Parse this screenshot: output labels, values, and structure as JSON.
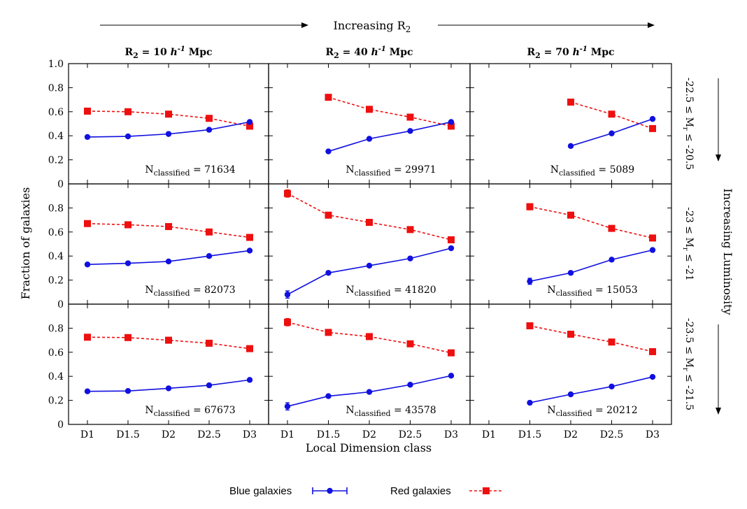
{
  "chart_data": {
    "type": "line",
    "title": "",
    "ylabel": "Fraction of galaxies",
    "xlabel": "Local Dimension class",
    "categories": [
      "D1",
      "D1.5",
      "D2",
      "D2.5",
      "D3"
    ],
    "ylim": [
      0,
      1.0
    ],
    "yticks_top": [
      "0",
      "0.2",
      "0.4",
      "0.6",
      "0.8",
      "1.0"
    ],
    "yticks": [
      "0",
      "0.2",
      "0.4",
      "0.6",
      "0.8"
    ],
    "top_arrow_label": "Increasing R",
    "top_arrow_sub": "2",
    "right_arrow_label": "Increasing Luminosity",
    "columns": [
      {
        "label": "R",
        "sub": "2",
        "value": " = 10 ",
        "h": "h",
        "exp": "-1",
        "unit": " Mpc"
      },
      {
        "label": "R",
        "sub": "2",
        "value": " = 40 ",
        "h": "h",
        "exp": "-1",
        "unit": " Mpc"
      },
      {
        "label": "R",
        "sub": "2",
        "value": " = 70 ",
        "h": "h",
        "exp": "-1",
        "unit": " Mpc"
      }
    ],
    "rows": [
      {
        "pre": "-22.5 ≤ M",
        "sub": "r",
        "post": " ≤ -20.5"
      },
      {
        "pre": "-23 ≤ M",
        "sub": "r",
        "post": " ≤ -21"
      },
      {
        "pre": "-23.5 ≤ M",
        "sub": "r",
        "post": " ≤ -21.5"
      }
    ],
    "n_label": "N",
    "n_sub": "classified",
    "panels": [
      {
        "row": 0,
        "col": 0,
        "n": "71634",
        "blue": [
          0.39,
          0.395,
          0.415,
          0.45,
          0.515
        ],
        "red": [
          0.605,
          0.6,
          0.58,
          0.545,
          0.48
        ],
        "blue_err": [
          0,
          0,
          0,
          0,
          0
        ],
        "red_err": [
          0,
          0,
          0,
          0,
          0
        ]
      },
      {
        "row": 0,
        "col": 1,
        "n": "29971",
        "blue": [
          null,
          0.27,
          0.375,
          0.44,
          0.515
        ],
        "red": [
          null,
          0.72,
          0.62,
          0.555,
          0.48
        ],
        "blue_err": [
          0,
          0,
          0,
          0,
          0
        ],
        "red_err": [
          0,
          0,
          0,
          0,
          0
        ]
      },
      {
        "row": 0,
        "col": 2,
        "n": "5089",
        "blue": [
          null,
          null,
          0.315,
          0.42,
          0.54
        ],
        "red": [
          null,
          null,
          0.68,
          0.58,
          0.46
        ],
        "blue_err": [
          0,
          0,
          0,
          0,
          0
        ],
        "red_err": [
          0,
          0,
          0,
          0,
          0
        ]
      },
      {
        "row": 1,
        "col": 0,
        "n": "82073",
        "blue": [
          0.33,
          0.34,
          0.355,
          0.4,
          0.445
        ],
        "red": [
          0.67,
          0.66,
          0.645,
          0.6,
          0.555
        ],
        "blue_err": [
          0,
          0,
          0,
          0,
          0
        ],
        "red_err": [
          0,
          0,
          0,
          0,
          0
        ]
      },
      {
        "row": 1,
        "col": 1,
        "n": "41820",
        "blue": [
          0.08,
          0.26,
          0.32,
          0.38,
          0.465
        ],
        "red": [
          0.92,
          0.74,
          0.68,
          0.62,
          0.535
        ],
        "blue_err": [
          0.03,
          0,
          0,
          0,
          0
        ],
        "red_err": [
          0.03,
          0,
          0,
          0,
          0
        ]
      },
      {
        "row": 1,
        "col": 2,
        "n": "15053",
        "blue": [
          null,
          0.19,
          0.26,
          0.37,
          0.45
        ],
        "red": [
          null,
          0.81,
          0.74,
          0.63,
          0.55
        ],
        "blue_err": [
          0,
          0.025,
          0,
          0,
          0
        ],
        "red_err": [
          0,
          0.025,
          0,
          0,
          0
        ]
      },
      {
        "row": 2,
        "col": 0,
        "n": "67673",
        "blue": [
          0.275,
          0.278,
          0.3,
          0.325,
          0.37
        ],
        "red": [
          0.725,
          0.722,
          0.7,
          0.675,
          0.63
        ],
        "blue_err": [
          0,
          0,
          0,
          0,
          0
        ],
        "red_err": [
          0,
          0,
          0,
          0,
          0
        ]
      },
      {
        "row": 2,
        "col": 1,
        "n": "43578",
        "blue": [
          0.15,
          0.235,
          0.27,
          0.33,
          0.405
        ],
        "red": [
          0.85,
          0.765,
          0.73,
          0.67,
          0.595
        ],
        "blue_err": [
          0.03,
          0,
          0,
          0,
          0
        ],
        "red_err": [
          0.03,
          0,
          0,
          0,
          0
        ]
      },
      {
        "row": 2,
        "col": 2,
        "n": "20212",
        "blue": [
          null,
          0.18,
          0.25,
          0.315,
          0.395
        ],
        "red": [
          null,
          0.82,
          0.75,
          0.685,
          0.605
        ],
        "blue_err": [
          0,
          0,
          0,
          0,
          0
        ],
        "red_err": [
          0,
          0,
          0,
          0,
          0
        ]
      }
    ],
    "legend": [
      {
        "name": "Blue galaxies",
        "color": "#1010e0"
      },
      {
        "name": "Red galaxies",
        "color": "#ee0f0f"
      }
    ]
  }
}
